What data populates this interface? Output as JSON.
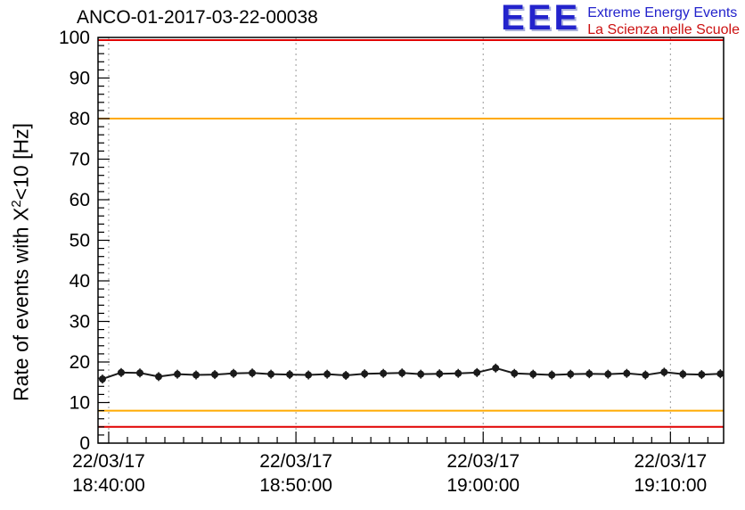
{
  "logo": {
    "acronym": "EEE",
    "line1": "Extreme Energy Events",
    "line2": "La Scienza nelle Scuole"
  },
  "colors": {
    "accent_blue": "#2323cc",
    "accent_red": "#cc1111",
    "alarm_red": "#e10000",
    "warn_orange": "#ffaa00",
    "series_black": "#1a1a1a",
    "grid_gray": "#999999"
  },
  "chart_data": {
    "type": "line",
    "title": "ANCO-01-2017-03-22-00038",
    "ylabel": "Rate of events with X^2<10 [Hz]",
    "ylabel_parts": {
      "prefix": "Rate of events with X",
      "sup": "2",
      "suffix": "<10 [Hz]"
    },
    "ylim": [
      0,
      100
    ],
    "y_major_step": 10,
    "y_minor_step": 2,
    "x_range_minutes": [
      -0.57,
      32.84
    ],
    "x_minor_step_minutes": 1,
    "grid": "vertical-dotted",
    "grid_color": "#999999",
    "x_ticks": [
      {
        "date": "22/03/17",
        "time": "18:40:00",
        "minutes": 0
      },
      {
        "date": "22/03/17",
        "time": "18:50:00",
        "minutes": 10
      },
      {
        "date": "22/03/17",
        "time": "19:00:00",
        "minutes": 20
      },
      {
        "date": "22/03/17",
        "time": "19:10:00",
        "minutes": 30
      }
    ],
    "thresholds": [
      {
        "name": "rate-max-alarm",
        "value": 100,
        "color": "#e10000"
      },
      {
        "name": "rate-max-warning",
        "value": 80,
        "color": "#ffaa00"
      },
      {
        "name": "rate-min-warning",
        "value": 8,
        "color": "#ffaa00"
      },
      {
        "name": "rate-min-alarm",
        "value": 4,
        "color": "#e10000"
      }
    ],
    "series": [
      {
        "name": "rate",
        "color": "#1a1a1a",
        "points": [
          [
            "18:39:40",
            15.8
          ],
          [
            "18:40:40",
            17.4
          ],
          [
            "18:41:40",
            17.3
          ],
          [
            "18:42:40",
            16.4
          ],
          [
            "18:43:40",
            17.0
          ],
          [
            "18:44:40",
            16.8
          ],
          [
            "18:45:40",
            16.9
          ],
          [
            "18:46:40",
            17.2
          ],
          [
            "18:47:40",
            17.3
          ],
          [
            "18:48:40",
            17.0
          ],
          [
            "18:49:40",
            16.9
          ],
          [
            "18:50:40",
            16.8
          ],
          [
            "18:51:40",
            17.0
          ],
          [
            "18:52:40",
            16.7
          ],
          [
            "18:53:40",
            17.1
          ],
          [
            "18:54:40",
            17.2
          ],
          [
            "18:55:40",
            17.3
          ],
          [
            "18:56:40",
            17.0
          ],
          [
            "18:57:40",
            17.1
          ],
          [
            "18:58:40",
            17.2
          ],
          [
            "18:59:40",
            17.4
          ],
          [
            "19:00:40",
            18.5
          ],
          [
            "19:01:40",
            17.2
          ],
          [
            "19:02:40",
            17.0
          ],
          [
            "19:03:40",
            16.8
          ],
          [
            "19:04:40",
            17.0
          ],
          [
            "19:05:40",
            17.1
          ],
          [
            "19:06:40",
            17.0
          ],
          [
            "19:07:40",
            17.2
          ],
          [
            "19:08:40",
            16.8
          ],
          [
            "19:09:40",
            17.5
          ],
          [
            "19:10:40",
            17.0
          ],
          [
            "19:11:40",
            16.9
          ],
          [
            "19:12:40",
            17.1
          ]
        ]
      }
    ]
  }
}
